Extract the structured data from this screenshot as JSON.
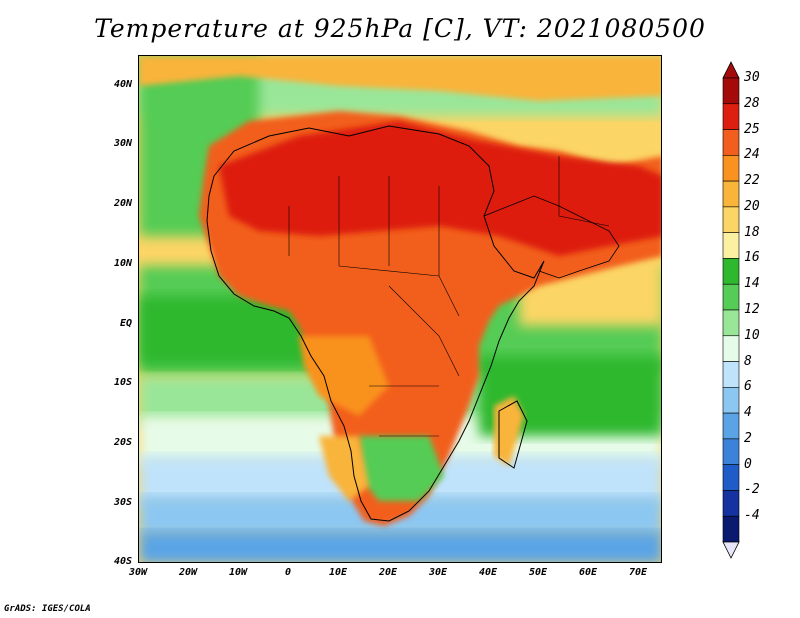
{
  "title": "Temperature at 925hPa [C], VT: 2021080500",
  "credit": "GrADS: IGES/COLA",
  "map": {
    "projection": "latlon",
    "lon_range": [
      -30,
      75
    ],
    "lat_range": [
      -40,
      45
    ],
    "lat_ticks": [
      "40N",
      "30N",
      "20N",
      "10N",
      "EQ",
      "10S",
      "20S",
      "30S",
      "40S"
    ],
    "lon_ticks": [
      "30W",
      "20W",
      "10W",
      "0",
      "10E",
      "20E",
      "30E",
      "40E",
      "50E",
      "60E",
      "70E"
    ],
    "boundaries": "country outlines"
  },
  "colorbar": {
    "levels": [
      "30",
      "28",
      "25",
      "24",
      "22",
      "20",
      "18",
      "16",
      "14",
      "12",
      "10",
      "8",
      "6",
      "4",
      "2",
      "0",
      "-2",
      "-4"
    ],
    "colors": [
      "#a50a0a",
      "#dd1f0f",
      "#f25e1e",
      "#f9921e",
      "#f9b43a",
      "#fbd565",
      "#fcf0a1",
      "#2eb82e",
      "#55cc55",
      "#9ae699",
      "#e6fbe8",
      "#bfe3fb",
      "#8cc7f2",
      "#5aa4e6",
      "#3c82db",
      "#1e5cc8",
      "#1433a0",
      "#0a1a6e"
    ],
    "over_color": "#a50a0a",
    "under_color": "#e8e6fb"
  }
}
